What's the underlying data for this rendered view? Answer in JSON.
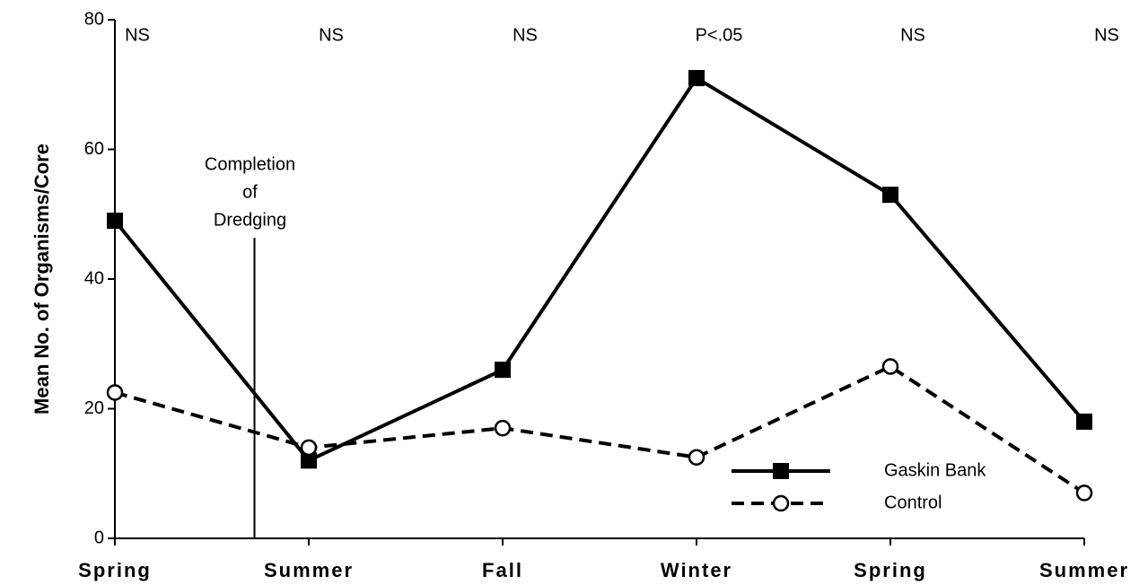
{
  "chart_data": {
    "type": "line",
    "y_label": "Mean No. of Organisms/Core",
    "categories": [
      "Spring",
      "Summer",
      "Fall",
      "Winter",
      "Spring",
      "Summer"
    ],
    "significance": [
      "NS",
      "NS",
      "NS",
      "P<.05",
      "NS",
      "NS"
    ],
    "annotation": [
      "Completion",
      "of",
      "Dredging"
    ],
    "series": [
      {
        "name": "Gaskin Bank",
        "color": "#000000",
        "line_style": "solid",
        "marker": "square",
        "values": [
          49,
          12,
          26,
          71,
          53,
          18
        ]
      },
      {
        "name": "Control",
        "color": "#000000",
        "line_style": "dashed",
        "marker": "open-circle",
        "values": [
          22.5,
          14,
          17,
          12.5,
          26.5,
          7
        ]
      }
    ],
    "ylim": [
      0,
      80
    ],
    "yticks": [
      0,
      20,
      40,
      60,
      80
    ],
    "legend": "lower right"
  }
}
